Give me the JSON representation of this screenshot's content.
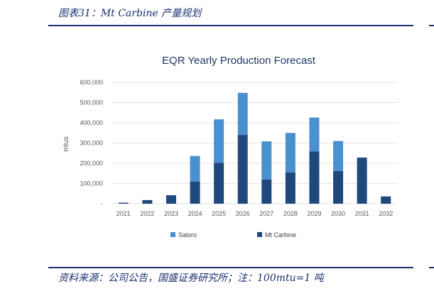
{
  "header": {
    "caption": "图表31：Mt Carbine 产量规划"
  },
  "footer": {
    "source": "资料来源：公司公告，国盛证券研究所；注：100mtu=1 吨"
  },
  "colors": {
    "accent": "#1a2f6e",
    "saloro": "#4a90d0",
    "mt_carbine": "#1f487c",
    "grid": "#d9d9d9"
  },
  "chart_data": {
    "type": "bar",
    "stacked": true,
    "title": "EQR Yearly Production Forecast",
    "xlabel": "",
    "ylabel": "mtus",
    "ylim": [
      0,
      600000
    ],
    "yticks": [
      0,
      100000,
      200000,
      300000,
      400000,
      500000,
      600000
    ],
    "ytick_labels": [
      "-",
      "100,000",
      "200,000",
      "300,000",
      "400,000",
      "500,000",
      "600,000"
    ],
    "categories": [
      "2021",
      "2022",
      "2023",
      "2024",
      "2025",
      "2026",
      "2027",
      "2028",
      "2029",
      "2030",
      "2031",
      "2032"
    ],
    "series": [
      {
        "name": "Mt Carbine",
        "color": "#1f487c",
        "values": [
          5000,
          18000,
          42000,
          110000,
          202000,
          340000,
          120000,
          155000,
          258000,
          162000,
          228000,
          36000
        ]
      },
      {
        "name": "Saloro",
        "color": "#4a90d0",
        "values": [
          0,
          0,
          0,
          126000,
          215000,
          208000,
          188000,
          195000,
          168000,
          148000,
          0,
          0
        ]
      }
    ],
    "legend": [
      "Saloro",
      "Mt Carbine"
    ],
    "legend_position": "bottom",
    "grid": true
  }
}
